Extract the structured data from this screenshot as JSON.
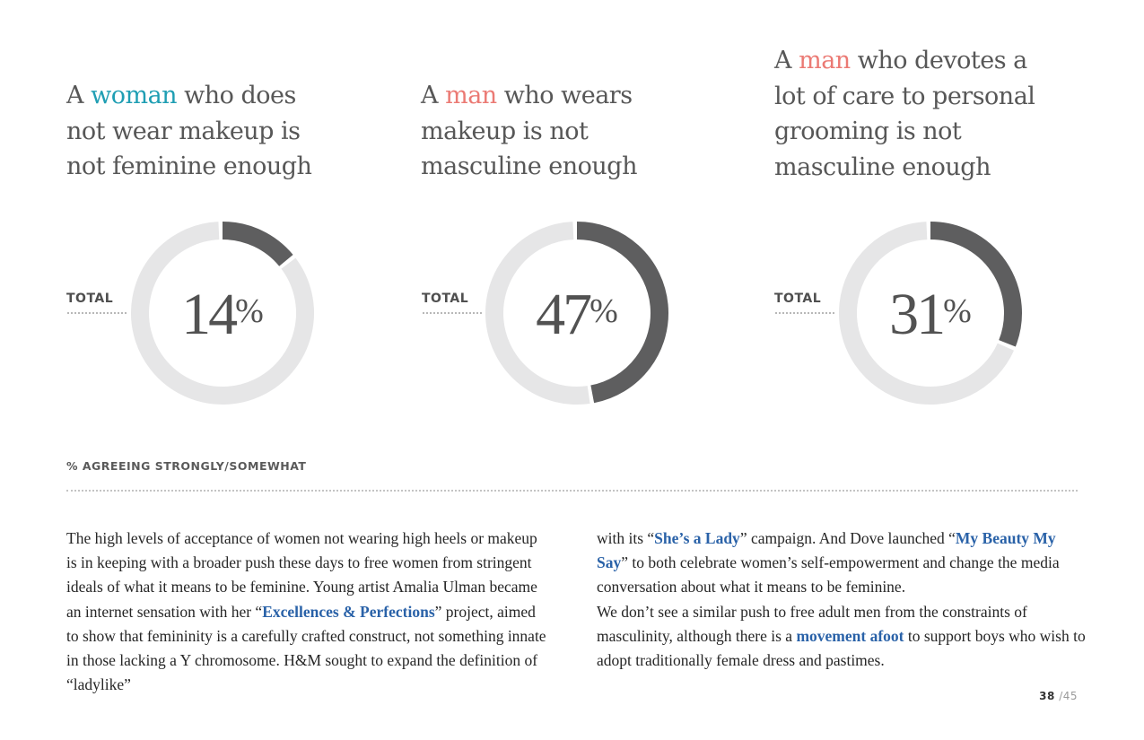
{
  "headings": [
    {
      "pre": "A ",
      "highlight": "woman",
      "highlight_color": "#1f9eb3",
      "l1": " who does",
      "l2": "not wear makeup is",
      "l3": "not feminine enough"
    },
    {
      "pre": "A ",
      "highlight": "man",
      "highlight_color": "#eb7a74",
      "l1": " who wears",
      "l2": "makeup is not",
      "l3": "masculine enough"
    },
    {
      "pre": "A ",
      "highlight": "man",
      "highlight_color": "#eb7a74",
      "l1": " who devotes a",
      "l2": "lot of care to personal",
      "l3": "grooming is not",
      "l4": "masculine enough"
    }
  ],
  "chart_data": [
    {
      "type": "pie",
      "variant": "donut",
      "label": "TOTAL",
      "value": 14,
      "unit": "%",
      "fill_color": "#5e5e5f",
      "track_color": "#e6e6e7"
    },
    {
      "type": "pie",
      "variant": "donut",
      "label": "TOTAL",
      "value": 47,
      "unit": "%",
      "fill_color": "#5e5e5f",
      "track_color": "#e6e6e7"
    },
    {
      "type": "pie",
      "variant": "donut",
      "label": "TOTAL",
      "value": 31,
      "unit": "%",
      "fill_color": "#5e5e5f",
      "track_color": "#e6e6e7"
    }
  ],
  "agreeing_label": "% AGREEING STRONGLY/SOMEWHAT",
  "body": {
    "col1": {
      "t1": "The high levels of acceptance of women not wearing high heels or makeup is in keeping with a broader push these days to free women from stringent ideals of what it means to be feminine. Young artist Amalia Ulman became an internet sensation with her “",
      "link1": "Excellences & Perfections",
      "t2": "” project, aimed to show that femininity is a carefully crafted construct, not something innate in those lacking a Y chromosome. H&M sought to expand the definition of “ladylike”"
    },
    "col2": {
      "t1": "with its “",
      "link1": "She’s a Lady",
      "t2": "” campaign. And Dove launched “",
      "link2": "My Beauty My Say",
      "t3": "” to both celebrate women’s self-empowerment and change the media conversation about what it means to be feminine.",
      "t4": "We don’t see a similar push to free adult men from the constraints of masculinity, although there is a ",
      "link3": "movement afoot",
      "t5": " to support boys who wish to adopt traditionally female dress and pastimes."
    }
  },
  "pager": {
    "current": "38",
    "total": "/45"
  }
}
